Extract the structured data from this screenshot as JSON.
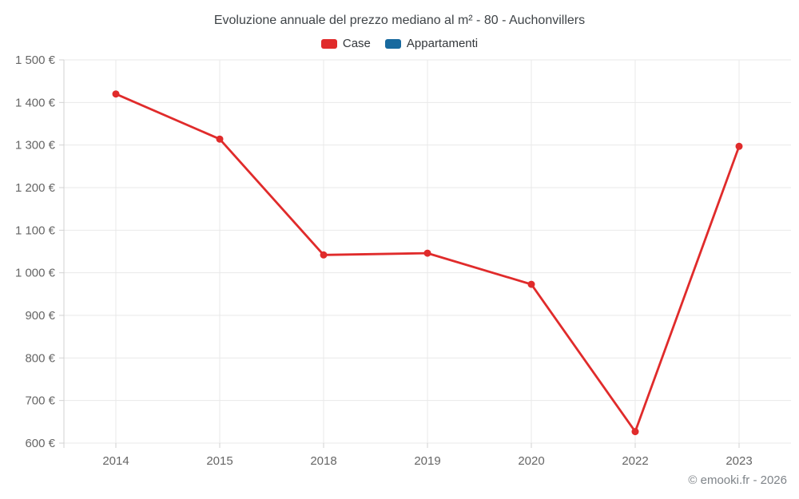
{
  "header": {
    "title": "Evoluzione annuale del prezzo mediano al m² - 80 - Auchonvillers"
  },
  "legend": {
    "items": [
      {
        "label": "Case",
        "color": "#e02b2b"
      },
      {
        "label": "Appartamenti",
        "color": "#17699e"
      }
    ]
  },
  "footer": {
    "copyright": "© emooki.fr - 2026"
  },
  "colors": {
    "grid": "#e9e9e9",
    "axis": "#d2d2d2",
    "tick_label": "#666666",
    "series_case": "#e02b2b",
    "series_appartamenti": "#17699e"
  },
  "chart_data": {
    "type": "line",
    "categories": [
      "2014",
      "2015",
      "2018",
      "2019",
      "2020",
      "2022",
      "2023"
    ],
    "series": [
      {
        "name": "Case",
        "color": "#e02b2b",
        "values": [
          1420,
          1314,
          1042,
          1046,
          973,
          627,
          1297
        ]
      },
      {
        "name": "Appartamenti",
        "color": "#17699e",
        "values": []
      }
    ],
    "title": "Evoluzione annuale del prezzo mediano al m² - 80 - Auchonvillers",
    "xlabel": "",
    "ylabel": "",
    "ylim": [
      600,
      1500
    ],
    "ytick_step": 100,
    "ytick_labels": [
      "600 €",
      "700 €",
      "800 €",
      "900 €",
      "1 000 €",
      "1 100 €",
      "1 200 €",
      "1 300 €",
      "1 400 €",
      "1 500 €"
    ],
    "grid": true,
    "legend_position": "top-center",
    "marker": "circle"
  }
}
